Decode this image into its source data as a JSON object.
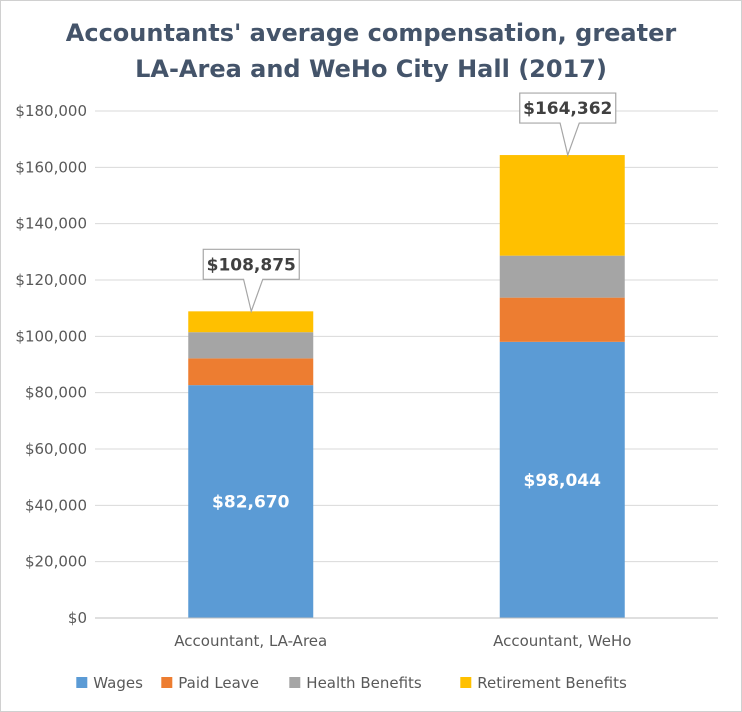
{
  "chart_data": {
    "type": "bar",
    "stacked": true,
    "title": "Accountants' average compensation, greater LA-Area and WeHo City Hall (2017)",
    "categories": [
      "Accountant, LA-Area",
      "Accountant, WeHo"
    ],
    "series": [
      {
        "name": "Wages",
        "values": [
          82670,
          98044
        ],
        "color": "#5b9bd5"
      },
      {
        "name": "Paid Leave",
        "values": [
          9500,
          15700
        ],
        "color": "#ed7d31"
      },
      {
        "name": "Health Benefits",
        "values": [
          9300,
          14900
        ],
        "color": "#a5a5a5"
      },
      {
        "name": "Retirement Benefits",
        "values": [
          7405,
          35718
        ],
        "color": "#ffc000"
      }
    ],
    "data_labels": {
      "inside_wages": [
        "$82,670",
        "$98,044"
      ],
      "totals": [
        "$108,875",
        "$164,362"
      ]
    },
    "yticks": [
      "$0",
      "$20,000",
      "$40,000",
      "$60,000",
      "$80,000",
      "$100,000",
      "$120,000",
      "$140,000",
      "$160,000",
      "$180,000"
    ],
    "ylim": [
      0,
      180000
    ],
    "grid": true,
    "legend_position": "bottom"
  }
}
